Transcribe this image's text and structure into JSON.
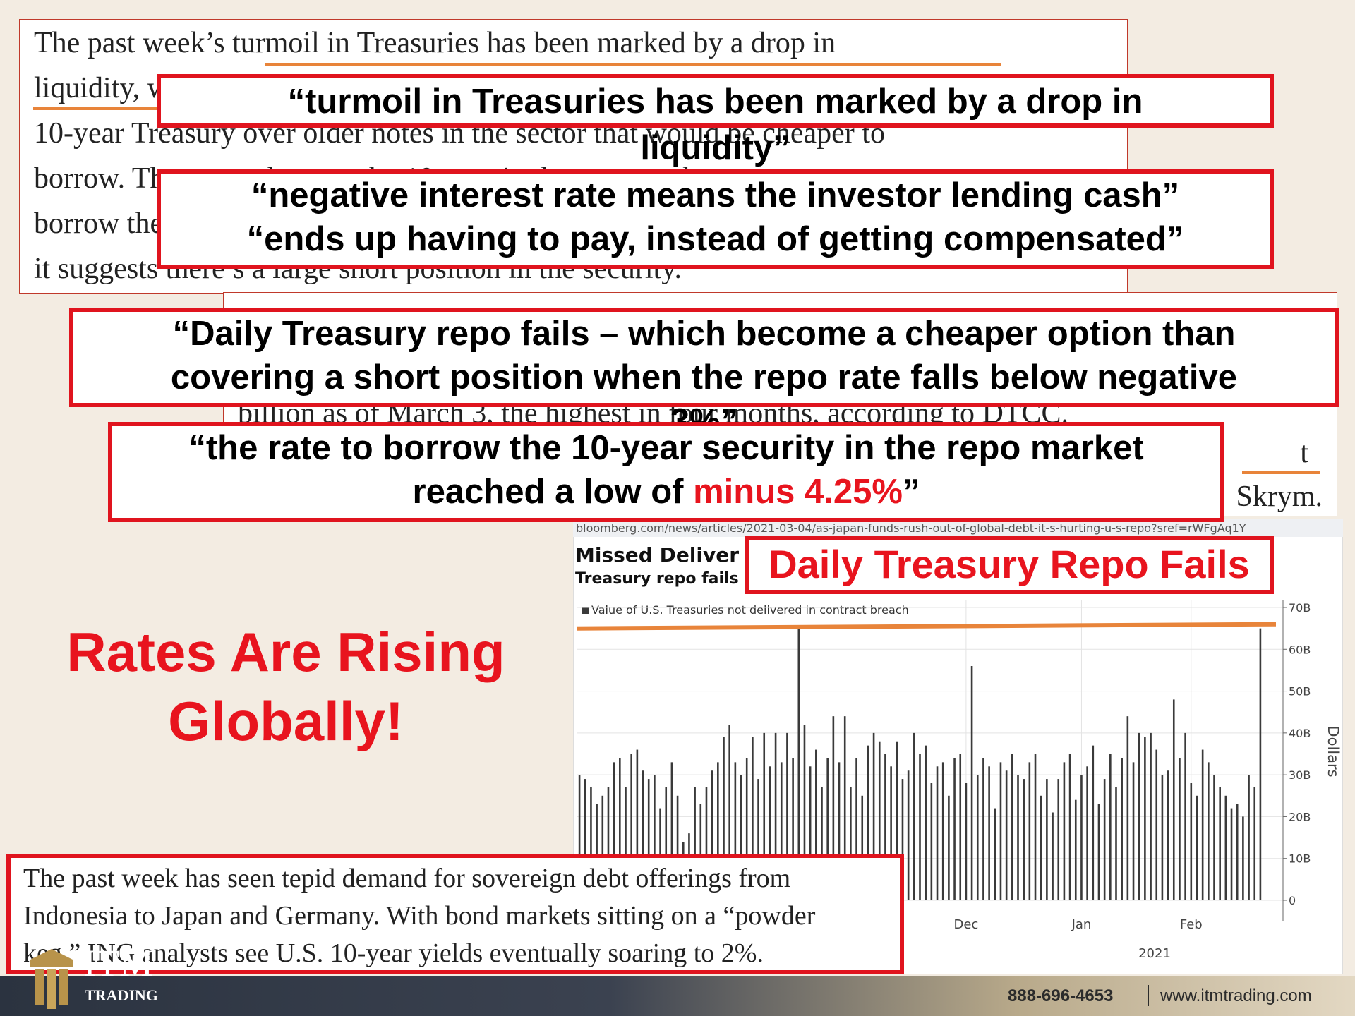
{
  "article_top": {
    "lines": [
      "The past week’s turmoil in Treasuries has been marked by a drop in",
      "liquidity, with dealers demanding more to lend the newest",
      "10-year Treasury over older notes in the sector that would be cheaper to",
      "borrow. The rate to borrow the 10-year in the repo market",
      "borrow the security dropped to negative levels, and",
      "it suggests there’s a large short position in the security."
    ]
  },
  "article_middle": {
    "lines": [
      "billion as of March 3, the highest in four months, according to DTCC.",
      "t",
      "Skrym."
    ]
  },
  "callouts": [
    {
      "lines": [
        "“turmoil in Treasuries has been marked by a drop in",
        "liquidity”"
      ]
    },
    {
      "lines": [
        "“negative interest rate means the investor lending cash”",
        "“ends up having to pay, instead of getting compensated”"
      ]
    },
    {
      "lines": [
        "“Daily Treasury repo fails – which become a cheaper option than",
        "covering a short position when the repo rate falls below negative",
        "3%”"
      ]
    },
    {
      "lines": [
        "“the rate to borrow the 10-year security in the repo market"
      ],
      "last_line": [
        "reached a low of ",
        "minus 4.25%",
        "”"
      ]
    }
  ],
  "chart_label": "Daily Treasury Repo Fails",
  "headline": [
    "Rates Are Rising",
    "Globally!"
  ],
  "article_bottom": {
    "lines": [
      "The past week has seen tepid demand for sovereign debt offerings from",
      "Indonesia to Japan and Germany. With bond markets sitting on a “powder",
      "keg,” ING analysts see U.S. 10-year yields eventually soaring to 2%."
    ]
  },
  "footer": {
    "logo": "ITM",
    "logo_sub": "TRADING",
    "phone": "888-696-4653",
    "website": "www.itmtrading.com"
  },
  "chart_data": {
    "type": "bar",
    "source_url": "bloomberg.com/news/articles/2021-03-04/as-japan-funds-rush-out-of-global-debt-it-s-hurting-u-s-repo?sref=rWFgAq1Y",
    "title": "Missed Deliver",
    "subtitle": "Treasury repo fails",
    "legend": "Value of U.S. Treasuries not delivered in contract breach",
    "y_label": "Dollars",
    "x_sublabel": "2021",
    "color": "#3a3a3a",
    "reference_line": {
      "value": 66,
      "color": "#e8843a"
    },
    "grid": true,
    "ylim": [
      0,
      70
    ],
    "yticks": [
      0,
      {
        "value": 10,
        "label": "10B"
      },
      {
        "value": 20,
        "label": "20B"
      },
      {
        "value": 30,
        "label": "30B"
      },
      {
        "value": 40,
        "label": "40B"
      },
      {
        "value": 50,
        "label": "50B"
      },
      {
        "value": 60,
        "label": "60B"
      },
      {
        "value": 70,
        "label": "70B"
      }
    ],
    "categories": [
      null,
      null,
      null,
      null,
      null,
      null,
      null,
      null,
      null,
      null,
      null,
      null,
      null,
      null,
      null,
      null,
      null,
      null,
      null,
      null,
      null,
      null,
      null,
      null,
      null,
      null,
      null,
      null,
      null,
      null,
      null,
      null,
      null,
      null,
      null,
      null,
      null,
      null,
      null,
      null,
      null,
      null,
      null,
      null,
      null,
      null,
      null,
      null,
      null,
      null,
      null,
      null,
      null,
      null,
      null,
      null,
      null,
      null,
      null,
      null,
      null,
      null,
      null,
      null,
      null,
      null,
      null,
      "Dec",
      null,
      null,
      null,
      null,
      null,
      null,
      null,
      null,
      null,
      null,
      null,
      null,
      null,
      null,
      null,
      null,
      null,
      null,
      null,
      "Jan",
      null,
      null,
      null,
      null,
      null,
      null,
      null,
      null,
      null,
      null,
      null,
      null,
      null,
      null,
      null,
      null,
      null,
      null,
      "Feb",
      null,
      null,
      null,
      null,
      null,
      null,
      null,
      null,
      null,
      null,
      null,
      null
    ],
    "values": [
      30,
      29,
      27,
      23,
      25,
      27,
      33,
      34,
      27,
      35,
      36,
      31,
      29,
      30,
      22,
      27,
      33,
      25,
      14,
      16,
      27,
      23,
      27,
      31,
      33,
      39,
      42,
      33,
      30,
      34,
      39,
      29,
      40,
      32,
      40,
      33,
      40,
      34,
      65,
      42,
      32,
      36,
      27,
      34,
      44,
      33,
      44,
      27,
      34,
      25,
      37,
      40,
      38,
      35,
      32,
      38,
      29,
      31,
      40,
      35,
      37,
      28,
      32,
      33,
      25,
      34,
      35,
      28,
      56,
      30,
      34,
      32,
      22,
      33,
      31,
      35,
      30,
      29,
      33,
      35,
      25,
      29,
      21,
      29,
      33,
      35,
      24,
      30,
      32,
      37,
      23,
      29,
      35,
      27,
      34,
      44,
      33,
      40,
      39,
      40,
      36,
      30,
      31,
      48,
      34,
      40,
      28,
      25,
      36,
      33,
      30,
      27,
      25,
      22,
      23,
      20,
      30,
      27,
      65
    ]
  }
}
